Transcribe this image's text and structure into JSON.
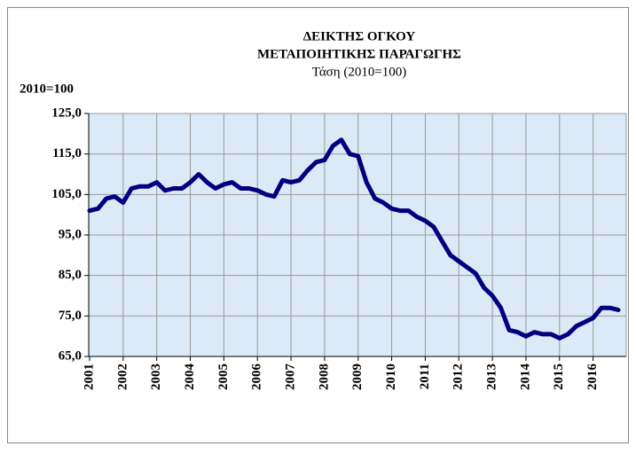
{
  "chart_data": {
    "type": "line",
    "title": [
      "ΔΕΙΚΤΗΣ ΟΓΚΟΥ",
      "ΜΕΤΑΠΟΙΗΤΙΚΗΣ ΠΑΡΑΓΩΓΗΣ"
    ],
    "subtitle": "Τάση (2010=100)",
    "y_label": "2010=100",
    "categories": [
      "2001",
      null,
      null,
      null,
      "2002",
      null,
      null,
      null,
      "2003",
      null,
      null,
      null,
      "2004",
      null,
      null,
      null,
      "2005",
      null,
      null,
      null,
      "2006",
      null,
      null,
      null,
      "2007",
      null,
      null,
      null,
      "2008",
      null,
      null,
      null,
      "2009",
      null,
      null,
      null,
      "2010",
      null,
      null,
      null,
      "2011",
      null,
      null,
      null,
      "2012",
      null,
      null,
      null,
      "2013",
      null,
      null,
      null,
      "2014",
      null,
      null,
      null,
      "2015",
      null,
      null,
      null,
      "2016",
      null,
      null,
      null
    ],
    "values": [
      101,
      101.5,
      104,
      104.5,
      103,
      106.5,
      107,
      107,
      108,
      106,
      106.5,
      106.5,
      108,
      110,
      108,
      106.5,
      107.5,
      108,
      106.5,
      106.5,
      106,
      105,
      104.5,
      108.5,
      108,
      108.5,
      111,
      113,
      113.5,
      117,
      118.5,
      115,
      114.5,
      108,
      104,
      103,
      101.5,
      101,
      101,
      99.5,
      98.5,
      97,
      93.5,
      90,
      88.5,
      87,
      85.5,
      82,
      80,
      77,
      71.5,
      71,
      70,
      71,
      70.5,
      70.5,
      69.5,
      70.5,
      72.5,
      73.5,
      74.5,
      77,
      77,
      76.5
    ],
    "color": "#000080",
    "ylim": [
      65,
      125
    ],
    "yticks": [
      {
        "value": 65,
        "label": "65,0"
      },
      {
        "value": 75,
        "label": "75,0"
      },
      {
        "value": 85,
        "label": "85,0"
      },
      {
        "value": 95,
        "label": "95,0"
      },
      {
        "value": 105,
        "label": "105,0"
      },
      {
        "value": 115,
        "label": "115,0"
      },
      {
        "value": 125,
        "label": "125,0"
      }
    ],
    "grid": true
  }
}
